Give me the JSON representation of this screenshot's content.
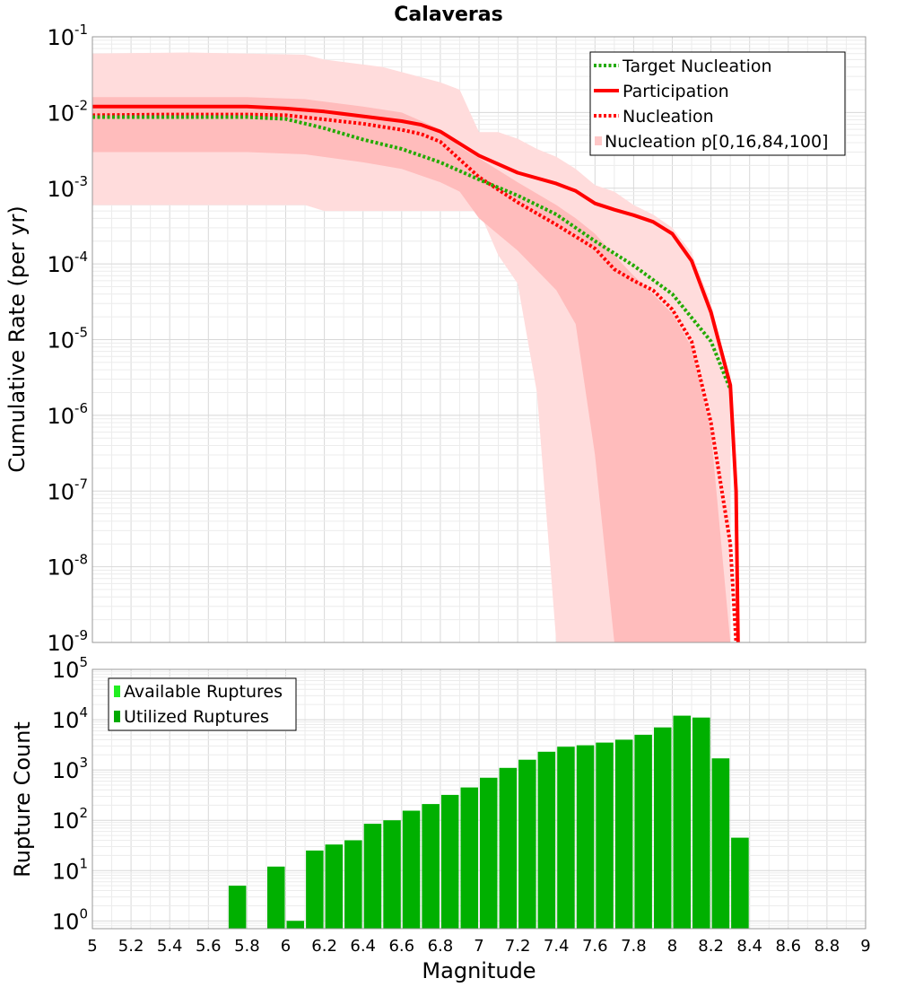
{
  "chart_data": [
    {
      "type": "line",
      "title": "Calaveras",
      "xlabel": "",
      "ylabel": "Cumulative Rate (per yr)",
      "xlim": [
        5,
        9
      ],
      "ylim": [
        1e-09,
        0.1
      ],
      "y_scale": "log",
      "grid": true,
      "legend_position": "top-right",
      "y_ticks": [
        {
          "base": "10",
          "exp": "-9"
        },
        {
          "base": "10",
          "exp": "-8"
        },
        {
          "base": "10",
          "exp": "-7"
        },
        {
          "base": "10",
          "exp": "-6"
        },
        {
          "base": "10",
          "exp": "-5"
        },
        {
          "base": "10",
          "exp": "-4"
        },
        {
          "base": "10",
          "exp": "-3"
        },
        {
          "base": "10",
          "exp": "-2"
        },
        {
          "base": "10",
          "exp": "-1"
        }
      ],
      "legend": [
        {
          "name": "Target Nucleation",
          "style": "dotted",
          "color": "#22aa00"
        },
        {
          "name": "Participation",
          "style": "solid",
          "color": "#ff0000"
        },
        {
          "name": "Nucleation",
          "style": "dotted",
          "color": "#ff0000"
        },
        {
          "name": "Nucleation p[0,16,84,100]",
          "style": "band",
          "color": "#ffc8c8"
        }
      ],
      "series": [
        {
          "name": "Participation",
          "color": "#ff0000",
          "style": "solid",
          "x": [
            5.0,
            5.4,
            5.6,
            5.8,
            6.0,
            6.2,
            6.4,
            6.6,
            6.7,
            6.8,
            7.0,
            7.2,
            7.4,
            7.5,
            7.6,
            7.7,
            7.8,
            7.9,
            8.0,
            8.1,
            8.2,
            8.3,
            8.33,
            8.34
          ],
          "y": [
            0.012,
            0.012,
            0.012,
            0.012,
            0.0113,
            0.0103,
            0.0089,
            0.0077,
            0.0069,
            0.0056,
            0.0027,
            0.0016,
            0.00115,
            0.00092,
            0.00063,
            0.00052,
            0.00044,
            0.00036,
            0.00025,
            0.00011,
            2.3e-05,
            2.5e-06,
            1e-07,
            1e-09
          ]
        },
        {
          "name": "Nucleation",
          "color": "#ff0000",
          "style": "dotted",
          "x": [
            5.0,
            5.4,
            5.6,
            5.8,
            6.0,
            6.2,
            6.4,
            6.6,
            6.7,
            6.8,
            7.0,
            7.2,
            7.4,
            7.6,
            7.7,
            7.8,
            7.9,
            8.0,
            8.1,
            8.2,
            8.3,
            8.33
          ],
          "y": [
            0.0092,
            0.0094,
            0.0094,
            0.0094,
            0.0092,
            0.0081,
            0.0071,
            0.0059,
            0.0052,
            0.0041,
            0.0014,
            0.00065,
            0.00033,
            0.00016,
            8.5e-05,
            6e-05,
            4.5e-05,
            2.5e-05,
            9.5e-06,
            8e-07,
            2e-08,
            1e-09
          ]
        },
        {
          "name": "Target Nucleation",
          "color": "#22aa00",
          "style": "dotted",
          "x": [
            5.0,
            5.4,
            5.6,
            5.8,
            6.0,
            6.2,
            6.4,
            6.6,
            6.8,
            7.0,
            7.2,
            7.4,
            7.6,
            7.8,
            8.0,
            8.2,
            8.3
          ],
          "y": [
            0.0087,
            0.0087,
            0.0087,
            0.0087,
            0.0082,
            0.0062,
            0.0044,
            0.0033,
            0.0022,
            0.0013,
            0.0008,
            0.00045,
            0.0002,
            9.5e-05,
            4e-05,
            9.5e-06,
            2.2e-06
          ]
        }
      ],
      "bands": [
        {
          "name": "p0-p100",
          "x": [
            5.0,
            5.5,
            5.8,
            6.1,
            6.2,
            6.5,
            6.8,
            6.9,
            7.0,
            7.1,
            7.2,
            7.3,
            7.4,
            7.5,
            7.6,
            7.7,
            7.8,
            7.9,
            8.0,
            8.1,
            8.2,
            8.3
          ],
          "upper": [
            0.06,
            0.062,
            0.06,
            0.058,
            0.05,
            0.04,
            0.025,
            0.02,
            0.0055,
            0.0055,
            0.0045,
            0.0033,
            0.0026,
            0.0018,
            0.0011,
            0.0009,
            0.0006,
            0.00045,
            0.0003,
            0.00014,
            3e-05,
            3e-06
          ],
          "lower": [
            0.0006,
            0.0006,
            0.0006,
            0.0006,
            0.0005,
            0.0005,
            0.0005,
            0.0005,
            0.0005,
            0.00013,
            5.5e-05,
            2e-06,
            1e-09,
            1e-09,
            1e-09,
            1e-09,
            1e-09,
            1e-09,
            1e-09,
            1e-09,
            1e-09,
            1e-09
          ]
        },
        {
          "name": "p16-p84",
          "x": [
            5.0,
            5.5,
            5.8,
            6.1,
            6.4,
            6.6,
            6.8,
            6.9,
            7.0,
            7.2,
            7.4,
            7.5,
            7.6,
            7.7,
            7.8,
            7.9,
            8.0,
            8.1,
            8.2,
            8.3
          ],
          "upper": [
            0.016,
            0.016,
            0.016,
            0.015,
            0.012,
            0.01,
            0.006,
            0.0035,
            0.0025,
            0.0012,
            0.0006,
            0.0004,
            0.00025,
            0.00013,
            7e-05,
            4e-05,
            2.2e-05,
            8e-06,
            6e-07,
            1e-09
          ],
          "lower": [
            0.003,
            0.003,
            0.003,
            0.0028,
            0.0022,
            0.0018,
            0.0012,
            0.0009,
            0.0004,
            0.00015,
            4.5e-05,
            1.6e-05,
            3e-07,
            1e-09,
            1e-09,
            1e-09,
            1e-09,
            1e-09,
            1e-09,
            1e-09
          ]
        }
      ]
    },
    {
      "type": "bar",
      "xlabel": "Magnitude",
      "ylabel": "Rupture Count",
      "xlim": [
        5,
        9
      ],
      "ylim": [
        0.7,
        100000
      ],
      "y_scale": "log",
      "grid": true,
      "legend_position": "top-left",
      "x_tick_labels": [
        "5",
        "5.2",
        "5.4",
        "5.6",
        "5.8",
        "6",
        "6.2",
        "6.4",
        "6.6",
        "6.8",
        "7",
        "7.2",
        "7.4",
        "7.6",
        "7.8",
        "8",
        "8.2",
        "8.4",
        "8.6",
        "8.8",
        "9"
      ],
      "y_ticks": [
        {
          "base": "10",
          "exp": "0"
        },
        {
          "base": "10",
          "exp": "1"
        },
        {
          "base": "10",
          "exp": "2"
        },
        {
          "base": "10",
          "exp": "3"
        },
        {
          "base": "10",
          "exp": "4"
        },
        {
          "base": "10",
          "exp": "5"
        }
      ],
      "legend": [
        {
          "name": "Available Ruptures",
          "color": "#22ee22"
        },
        {
          "name": "Utilized Ruptures",
          "color": "#00aa00"
        }
      ],
      "bar_width": 0.1,
      "series": [
        {
          "name": "Utilized Ruptures",
          "color": "#00b000",
          "x": [
            5.75,
            5.95,
            6.05,
            6.15,
            6.25,
            6.35,
            6.45,
            6.55,
            6.65,
            6.75,
            6.85,
            6.95,
            7.05,
            7.15,
            7.25,
            7.35,
            7.45,
            7.55,
            7.65,
            7.75,
            7.85,
            7.95,
            8.05,
            8.15,
            8.25,
            8.35
          ],
          "values": [
            5,
            12,
            1,
            25,
            33,
            40,
            85,
            100,
            155,
            210,
            320,
            450,
            700,
            1100,
            1600,
            2300,
            2900,
            3100,
            3500,
            4000,
            5000,
            7000,
            12000,
            11000,
            1700,
            45
          ]
        }
      ]
    }
  ]
}
